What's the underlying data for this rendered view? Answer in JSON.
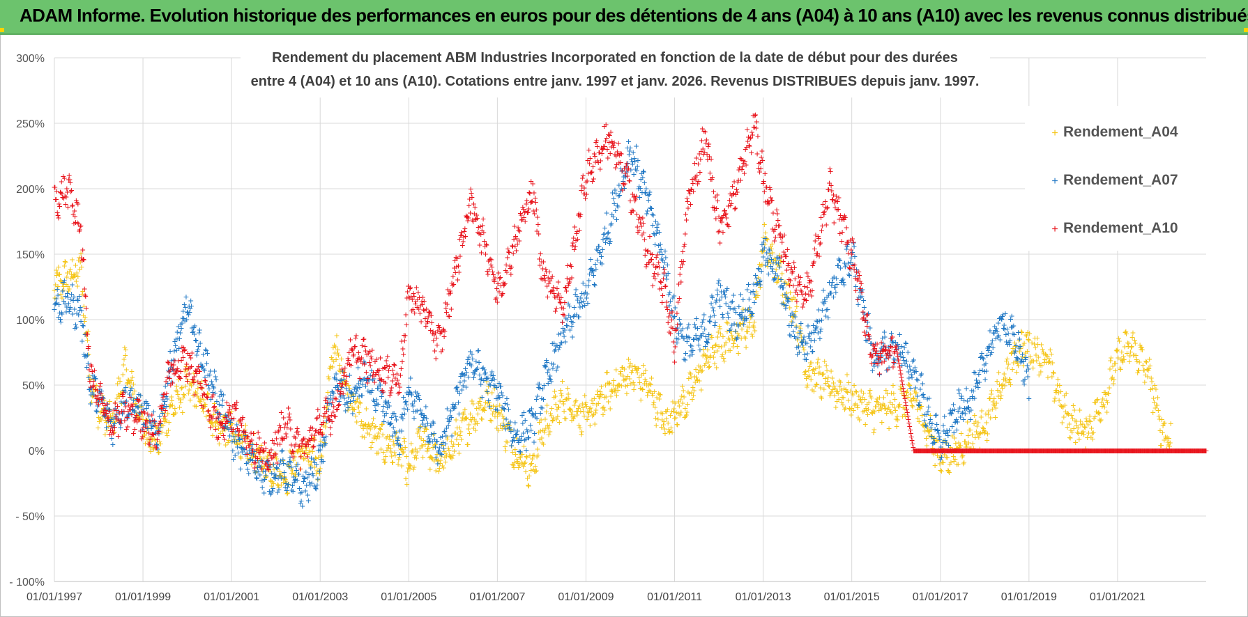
{
  "header": {
    "banner": "ADAM Informe. Evolution historique des performances en euros pour des détentions de 4 ans (A04) à 10 ans (A10) avec les revenus connus distribués"
  },
  "colors": {
    "banner_bg": "#6cc36d",
    "A04": "#f5c518",
    "A07": "#1f77c4",
    "A10": "#e8121a",
    "grid": "#d9d9d9"
  },
  "chart_data": {
    "type": "scatter",
    "title_line1": "Rendement du placement ABM Industries Incorporated en fonction de la date de début pour des durées",
    "title_line2": "entre 4 (A04) et 10 ans (A10).  Cotations entre janv. 1997 et janv. 2026. Revenus DISTRIBUES  depuis janv. 1997.",
    "ylabel": "",
    "xlabel": "",
    "ylim": [
      -100,
      300
    ],
    "yticks": [
      -100,
      -50,
      0,
      50,
      100,
      150,
      200,
      250,
      300
    ],
    "ytick_labels": [
      "- 100%",
      "- 50%",
      "0%",
      "50%",
      "100%",
      "150%",
      "200%",
      "250%",
      "300%"
    ],
    "xlim": [
      1997.0,
      2023.0
    ],
    "xticks": [
      1997,
      1999,
      2001,
      2003,
      2005,
      2007,
      2009,
      2011,
      2013,
      2015,
      2017,
      2019,
      2021
    ],
    "xtick_labels": [
      "01/01/1997",
      "01/01/1999",
      "01/01/2001",
      "01/01/2003",
      "01/01/2005",
      "01/01/2007",
      "01/01/2009",
      "01/01/2011",
      "01/01/2013",
      "01/01/2015",
      "01/01/2017",
      "01/01/2019",
      "01/01/2021"
    ],
    "legend_position": "top-right",
    "grid": true,
    "series": [
      {
        "name": "Rendement_A04",
        "color": "#f5c518",
        "x": [
          1997.0,
          1997.3,
          1997.6,
          1997.8,
          1998.0,
          1998.3,
          1998.6,
          1999.0,
          1999.3,
          1999.6,
          2000.0,
          2000.3,
          2000.7,
          2001.0,
          2001.4,
          2001.8,
          2002.2,
          2002.6,
          2003.0,
          2003.3,
          2003.7,
          2004.0,
          2004.4,
          2004.8,
          2005.0,
          2005.3,
          2005.7,
          2006.0,
          2006.4,
          2006.8,
          2007.0,
          2007.4,
          2007.8,
          2008.0,
          2008.5,
          2009.0,
          2009.5,
          2010.0,
          2010.4,
          2010.8,
          2011.0,
          2011.3,
          2011.7,
          2012.0,
          2012.4,
          2012.8,
          2013.0,
          2013.3,
          2013.7,
          2014.0,
          2014.5,
          2015.0,
          2015.5,
          2016.0,
          2016.4,
          2016.8,
          2017.0,
          2017.4,
          2017.8,
          2018.0,
          2018.4,
          2018.8,
          2019.0,
          2019.4,
          2019.8,
          2020.0,
          2020.3,
          2020.7,
          2021.0,
          2021.3,
          2021.7,
          2022.0,
          2022.2
        ],
        "y": [
          125,
          132,
          138,
          60,
          30,
          20,
          65,
          20,
          5,
          30,
          50,
          40,
          20,
          15,
          0,
          -10,
          -20,
          0,
          -10,
          80,
          40,
          20,
          5,
          0,
          -15,
          10,
          -10,
          5,
          25,
          40,
          30,
          0,
          -15,
          15,
          40,
          25,
          45,
          60,
          50,
          20,
          30,
          40,
          70,
          80,
          90,
          100,
          160,
          140,
          110,
          60,
          50,
          40,
          30,
          35,
          40,
          10,
          -5,
          0,
          15,
          20,
          50,
          80,
          80,
          70,
          30,
          20,
          15,
          40,
          70,
          80,
          60,
          15,
          10
        ]
      },
      {
        "name": "Rendement_A07",
        "color": "#1f77c4",
        "x": [
          1997.0,
          1997.3,
          1997.6,
          1997.8,
          1998.0,
          1998.3,
          1998.6,
          1999.0,
          1999.3,
          1999.6,
          2000.0,
          2000.3,
          2000.7,
          2001.0,
          2001.4,
          2001.8,
          2002.2,
          2002.6,
          2003.0,
          2003.3,
          2003.7,
          2004.0,
          2004.4,
          2004.8,
          2005.0,
          2005.3,
          2005.7,
          2006.0,
          2006.4,
          2006.8,
          2007.0,
          2007.4,
          2007.8,
          2008.0,
          2008.5,
          2009.0,
          2009.5,
          2010.0,
          2010.4,
          2010.8,
          2011.0,
          2011.3,
          2011.7,
          2012.0,
          2012.4,
          2012.8,
          2013.0,
          2013.3,
          2013.7,
          2014.0,
          2014.5,
          2015.0,
          2015.5,
          2016.0,
          2016.4,
          2016.8,
          2017.0,
          2017.4,
          2017.8,
          2018.0,
          2018.4,
          2018.8,
          2019.0
        ],
        "y": [
          110,
          115,
          105,
          50,
          40,
          20,
          40,
          30,
          10,
          60,
          110,
          75,
          40,
          10,
          -5,
          -20,
          -15,
          -30,
          -10,
          50,
          40,
          55,
          35,
          10,
          50,
          25,
          0,
          30,
          70,
          50,
          45,
          10,
          20,
          45,
          90,
          120,
          170,
          230,
          190,
          140,
          100,
          80,
          90,
          120,
          100,
          120,
          150,
          140,
          90,
          80,
          120,
          150,
          70,
          80,
          60,
          20,
          5,
          30,
          45,
          70,
          100,
          75,
          50
        ]
      },
      {
        "name": "Rendement_A10",
        "color": "#e8121a",
        "x": [
          1997.0,
          1997.3,
          1997.6,
          1997.8,
          1998.0,
          1998.3,
          1998.6,
          1999.0,
          1999.3,
          1999.6,
          2000.0,
          2000.3,
          2000.7,
          2001.0,
          2001.4,
          2001.8,
          2002.2,
          2002.6,
          2003.0,
          2003.3,
          2003.7,
          2004.0,
          2004.4,
          2004.8,
          2005.0,
          2005.3,
          2005.7,
          2006.0,
          2006.4,
          2006.8,
          2007.0,
          2007.4,
          2007.8,
          2008.0,
          2008.5,
          2009.0,
          2009.5,
          2010.0,
          2010.4,
          2010.8,
          2011.0,
          2011.3,
          2011.7,
          2012.0,
          2012.4,
          2012.8,
          2013.0,
          2013.3,
          2013.7,
          2014.0,
          2014.5,
          2015.0,
          2015.5,
          2016.0,
          2016.4,
          2016.8,
          2017.0,
          2017.5,
          2018.0,
          2018.5,
          2019.0,
          2019.5,
          2020.0,
          2020.5,
          2021.0,
          2021.5,
          2022.0,
          2022.5,
          2023.0
        ],
        "y": [
          190,
          200,
          170,
          60,
          40,
          20,
          30,
          25,
          10,
          60,
          70,
          50,
          20,
          30,
          10,
          -10,
          20,
          0,
          20,
          30,
          75,
          70,
          60,
          55,
          120,
          110,
          80,
          130,
          190,
          150,
          120,
          160,
          200,
          140,
          110,
          210,
          240,
          200,
          150,
          120,
          80,
          190,
          240,
          170,
          200,
          250,
          210,
          170,
          130,
          120,
          200,
          150,
          70,
          80,
          0,
          0,
          0,
          0,
          0,
          0,
          0,
          0,
          0,
          0,
          0,
          0,
          0,
          0,
          0
        ]
      }
    ]
  }
}
